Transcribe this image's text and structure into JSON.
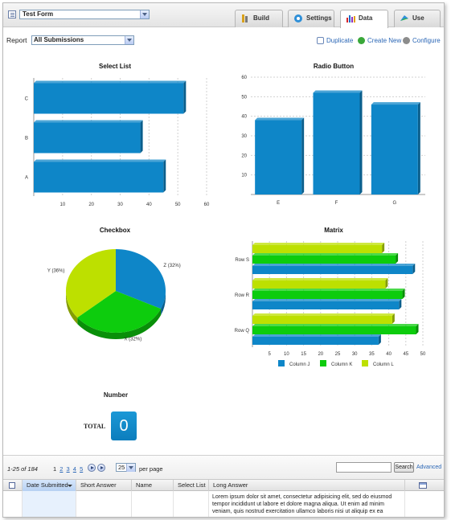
{
  "header": {
    "form_name": "Test Form",
    "tabs": [
      {
        "label": "Build",
        "icon": "build-icon",
        "active": false
      },
      {
        "label": "Settings",
        "icon": "settings-icon",
        "active": false
      },
      {
        "label": "Data",
        "icon": "data-icon",
        "active": true
      },
      {
        "label": "Use",
        "icon": "use-icon",
        "active": false
      }
    ]
  },
  "report": {
    "label": "Report",
    "selected": "All Submissions",
    "actions": {
      "duplicate": "Duplicate",
      "create_new": "Create New",
      "configure": "Configure"
    }
  },
  "colors": {
    "blue": "#0e86c8",
    "green": "#0dcc0d",
    "lime": "#bde000",
    "link": "#2b67b6"
  },
  "chart_data": [
    {
      "type": "bar",
      "orientation": "horizontal",
      "title": "Select List",
      "categories": [
        "C",
        "B",
        "A"
      ],
      "values": [
        52,
        37,
        45
      ],
      "xticks": [
        10,
        20,
        30,
        40,
        50,
        60
      ],
      "xlim": [
        0,
        60
      ]
    },
    {
      "type": "bar",
      "title": "Radio Button",
      "categories": [
        "E",
        "F",
        "G"
      ],
      "values": [
        38,
        52,
        46
      ],
      "yticks": [
        10,
        20,
        30,
        40,
        50,
        60
      ],
      "ylim": [
        0,
        60
      ]
    },
    {
      "type": "pie",
      "title": "Checkbox",
      "slices": [
        {
          "label": "Z (32%)",
          "value": 32,
          "color": "#0e86c8"
        },
        {
          "label": "X (32%)",
          "value": 32,
          "color": "#0dcc0d"
        },
        {
          "label": "Y (36%)",
          "value": 36,
          "color": "#bde000"
        }
      ]
    },
    {
      "type": "bar",
      "orientation": "horizontal",
      "title": "Matrix",
      "categories": [
        "Row S",
        "Row R",
        "Row Q"
      ],
      "series": [
        {
          "name": "Column L",
          "color": "#bde000",
          "values": [
            38,
            39,
            41
          ]
        },
        {
          "name": "Column K",
          "color": "#0dcc0d",
          "values": [
            42,
            44,
            48
          ]
        },
        {
          "name": "Column J",
          "color": "#0e86c8",
          "values": [
            47,
            43,
            37
          ]
        }
      ],
      "xticks": [
        5,
        10,
        15,
        20,
        25,
        30,
        35,
        40,
        45,
        50
      ],
      "xlim": [
        0,
        50
      ],
      "legend": [
        "Column J",
        "Column K",
        "Column L"
      ],
      "legend_position": "bottom"
    }
  ],
  "number": {
    "title": "Number",
    "label": "TOTAL",
    "value": "0"
  },
  "pager": {
    "range": "1-25 of 184",
    "pages": [
      "1",
      "2",
      "3",
      "4",
      "5"
    ],
    "per_page_value": "25",
    "per_page_label": "per page",
    "search_button": "Search",
    "advanced_link": "Advanced"
  },
  "table": {
    "columns": [
      "Date Submitted",
      "Short Answer",
      "Name",
      "Select List",
      "Long Answer"
    ],
    "rows": [
      {
        "long_answer": "Lorem ipsum dolor sit amet, consectetur adipisicing elit, sed do eiusmod tempor incididunt ut labore et dolore magna aliqua. Ut enim ad minim veniam, quis nostrud exercitation ullamco laboris nisi ut aliquip ex ea"
      }
    ]
  }
}
